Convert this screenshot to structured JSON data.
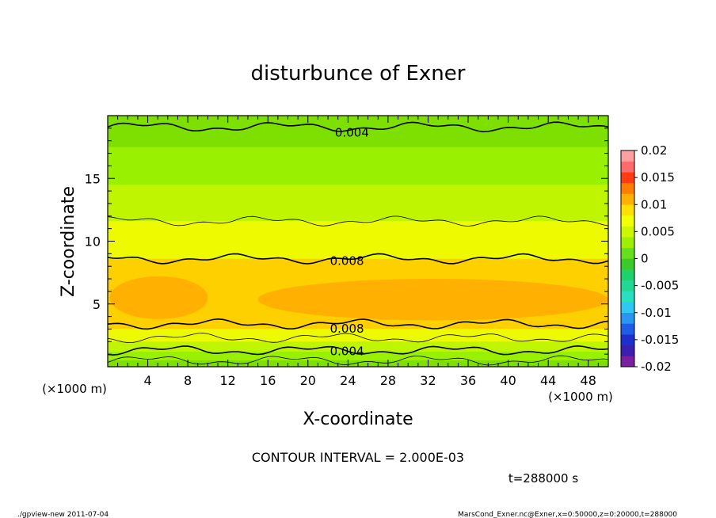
{
  "chart_data": {
    "type": "heatmap",
    "title": "disturbunce of Exner",
    "xlabel": "X-coordinate",
    "ylabel": "Z-coordinate",
    "x_unit": "(×1000 m)",
    "x_unit_left": "(×1000 m)",
    "xlim": [
      0,
      50
    ],
    "ylim": [
      0,
      20
    ],
    "x_ticks": [
      4,
      8,
      12,
      16,
      20,
      24,
      28,
      32,
      36,
      40,
      44,
      48
    ],
    "y_ticks": [
      5,
      10,
      15
    ],
    "contour_interval": "CONTOUR INTERVAL = 2.000E-03",
    "time_label": "t=288000 s",
    "footer_left": "./gpview-new  2011-07-04",
    "footer_right": "MarsCond_Exner.nc@Exner,x=0:50000,z=0:20000,t=288000",
    "colorbar": {
      "min": -0.02,
      "max": 0.02,
      "tick_labels": [
        "0.02",
        "0.015",
        "0.01",
        "0.005",
        "0",
        "-0.005",
        "-0.01",
        "-0.015",
        "-0.02"
      ],
      "tick_values": [
        0.02,
        0.015,
        0.01,
        0.005,
        0,
        -0.005,
        -0.01,
        -0.015,
        -0.02
      ],
      "colors": [
        "#7a1fa2",
        "#3a1fb0",
        "#1c2fcf",
        "#1f5ce8",
        "#2a96f2",
        "#2fc8f0",
        "#28e0c0",
        "#22d895",
        "#1ed26a",
        "#3acb28",
        "#66e01c",
        "#9cf000",
        "#ccf700",
        "#f4ff00",
        "#ffe000",
        "#ffb000",
        "#ff7e00",
        "#ff3c10",
        "#ff6a6a",
        "#ffa0a0"
      ]
    },
    "contour_labels": [
      {
        "text": "0.004",
        "x": 22.5,
        "z": 18.7
      },
      {
        "text": "0.008",
        "x": 22.0,
        "z": 8.5
      },
      {
        "text": "0.008",
        "x": 22.0,
        "z": 3.1
      },
      {
        "text": "0.004",
        "x": 22.0,
        "z": 1.3
      }
    ],
    "bands": [
      {
        "z0": 17.5,
        "z1": 20.0,
        "color": "#7de000"
      },
      {
        "z0": 14.5,
        "z1": 17.5,
        "color": "#99f000"
      },
      {
        "z0": 11.6,
        "z1": 14.5,
        "color": "#bff500"
      },
      {
        "z0": 8.6,
        "z1": 11.6,
        "color": "#eefb00"
      },
      {
        "z0": 3.0,
        "z1": 8.6,
        "color": "#ffd000"
      },
      {
        "z0": 2.0,
        "z1": 3.0,
        "color": "#eefb00"
      },
      {
        "z0": 1.2,
        "z1": 2.0,
        "color": "#bff500"
      },
      {
        "z0": 0.5,
        "z1": 1.2,
        "color": "#99f000"
      },
      {
        "z0": 0.0,
        "z1": 0.5,
        "color": "#7de000"
      }
    ],
    "max_regions": [
      {
        "x0": 0.2,
        "x1": 10.0,
        "z0": 3.8,
        "z1": 7.2,
        "color": "#ffb000"
      },
      {
        "x0": 15.0,
        "x1": 50.0,
        "z0": 3.7,
        "z1": 7.0,
        "color": "#ffb000"
      }
    ],
    "contours": [
      {
        "z": 19.1,
        "width": 1.6
      },
      {
        "z": 11.6,
        "width": 0.8
      },
      {
        "z": 8.6,
        "width": 1.6
      },
      {
        "z": 3.4,
        "width": 1.6
      },
      {
        "z": 2.3,
        "width": 0.8
      },
      {
        "z": 1.3,
        "width": 1.6
      },
      {
        "z": 0.5,
        "width": 0.8
      }
    ]
  }
}
